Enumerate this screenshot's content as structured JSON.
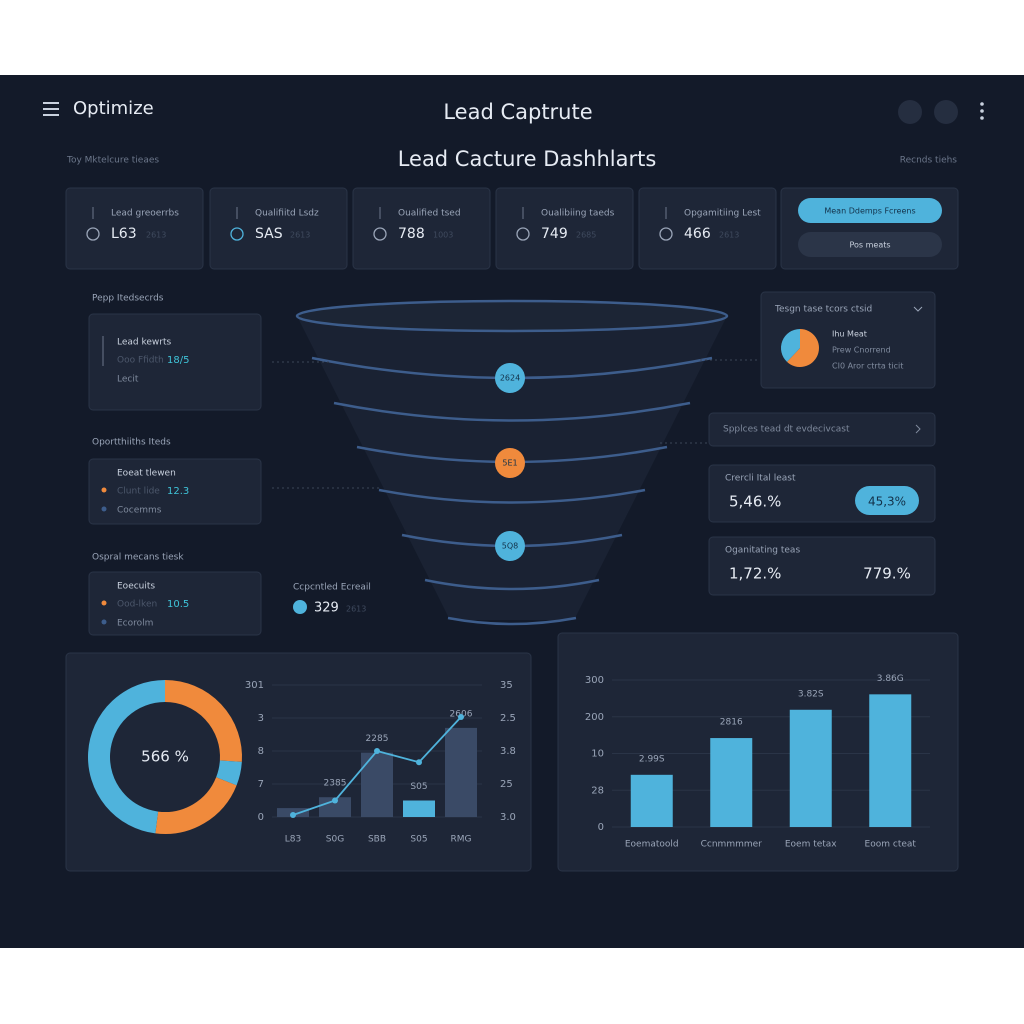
{
  "header": {
    "brand": "Optimize",
    "title": "Lead Captrute",
    "subtitle": "Lead Cacture Dashhlarts",
    "left_note": "Toy Mktelcure tieaes",
    "right_note": "Recnds tiehs"
  },
  "kpis": [
    {
      "label": "Lead greoerrbs",
      "value": "L63",
      "sub": "2613"
    },
    {
      "label": "Qualifiitd Lsdz",
      "value": "SAS",
      "sub": "2613"
    },
    {
      "label": "Oualified tsed",
      "value": "788",
      "sub": "1003"
    },
    {
      "label": "Oualibiing taeds",
      "value": "749",
      "sub": "2685"
    },
    {
      "label": "Opgamitiing Lest",
      "value": "466",
      "sub": "2613"
    }
  ],
  "actions": [
    "Mean Ddemps Fcreens",
    "Pos meats"
  ],
  "sections": [
    {
      "heading": "Pepp Itedsecrds",
      "title": "Lead kewrts",
      "line": "Ooo Ffidth",
      "value": "18/5",
      "foot": "Lecit"
    },
    {
      "heading": "Oportthiiths Iteds",
      "title": "Eoeat tlewen",
      "line": "Clunt lide",
      "value": "12.3",
      "foot": "Cocemms"
    },
    {
      "heading": "Ospral mecans tiesk",
      "title": "Eoecuits",
      "line": "Ood-lken",
      "value": "10.5",
      "foot": "Ecorolm"
    }
  ],
  "funnel": {
    "markers": [
      "2624",
      "5E1",
      "5Q8"
    ],
    "note": {
      "label": "Ccpcntled Ecreail",
      "value": "329",
      "sub": "2613"
    }
  },
  "summary": {
    "title": "Tesgn tase tcors ctsid",
    "legend": [
      "Ihu Meat",
      "Prew Cnorrend",
      "CI0 Aror ctrta ticit"
    ]
  },
  "link": "Spplces tead dt evdecivcast",
  "metrics": [
    {
      "label": "Crercli Ital least",
      "value": "5,46.%",
      "badge": "45,3%"
    },
    {
      "label": "Oganitating teas",
      "value": "1,72.%",
      "badge": "779.%"
    }
  ],
  "chart_data": [
    {
      "type": "pie",
      "values": [
        62,
        38
      ],
      "colors": [
        "#f08a3c",
        "#4fb3dc"
      ]
    },
    {
      "type": "pie",
      "center_label": "566 %",
      "values": [
        26,
        5,
        21,
        48
      ],
      "colors": [
        "#f08a3c",
        "#4fb3dc",
        "#f08a3c",
        "#4fb3dc"
      ]
    },
    {
      "type": "bar",
      "categories": [
        "L83",
        "S0G",
        "SBB",
        "S05",
        "RMG"
      ],
      "values": [
        0.27,
        0.6,
        1.95,
        0.5,
        2.7
      ],
      "value_labels": [
        null,
        "2385",
        "2285",
        "S05",
        "2606"
      ],
      "colors": [
        "#3a4a66",
        "#3a4a66",
        "#3a4a66",
        "#4fb3dc",
        "#3a4a66"
      ],
      "line_values": [
        0.06,
        0.5,
        2.0,
        1.66,
        3.03
      ],
      "line_axis": "y2",
      "line_color": "#4fb3dc",
      "ylim": [
        0,
        4
      ],
      "yticks": [
        0,
        {
          "value": 1,
          "label": "7"
        },
        {
          "value": 2,
          "label": "8"
        },
        {
          "value": 3,
          "label": "3"
        },
        {
          "value": 4,
          "label": "301"
        }
      ],
      "y2lim": [
        0,
        4
      ],
      "y2ticks": [
        {
          "value": 0,
          "label": "3.0"
        },
        {
          "value": 1,
          "label": "25"
        },
        {
          "value": 2,
          "label": "3.8"
        },
        {
          "value": 3,
          "label": "2.5"
        },
        {
          "value": 4,
          "label": "35"
        }
      ],
      "grid": true
    },
    {
      "type": "bar",
      "categories": [
        "Eoematoold",
        "Ccnmmmmer",
        "Eoem tetax",
        "Eoom cteat"
      ],
      "values": [
        142,
        242,
        319,
        361
      ],
      "value_labels": [
        "2.99S",
        "2816",
        "3.82S",
        "3.86G"
      ],
      "color": "#4fb3dc",
      "ylim": [
        0,
        400
      ],
      "yticks": [
        0,
        {
          "value": 100,
          "label": "28"
        },
        {
          "value": 200,
          "label": "10"
        },
        {
          "value": 300,
          "label": "200"
        },
        {
          "value": 400,
          "label": "300"
        }
      ],
      "grid": true
    }
  ]
}
